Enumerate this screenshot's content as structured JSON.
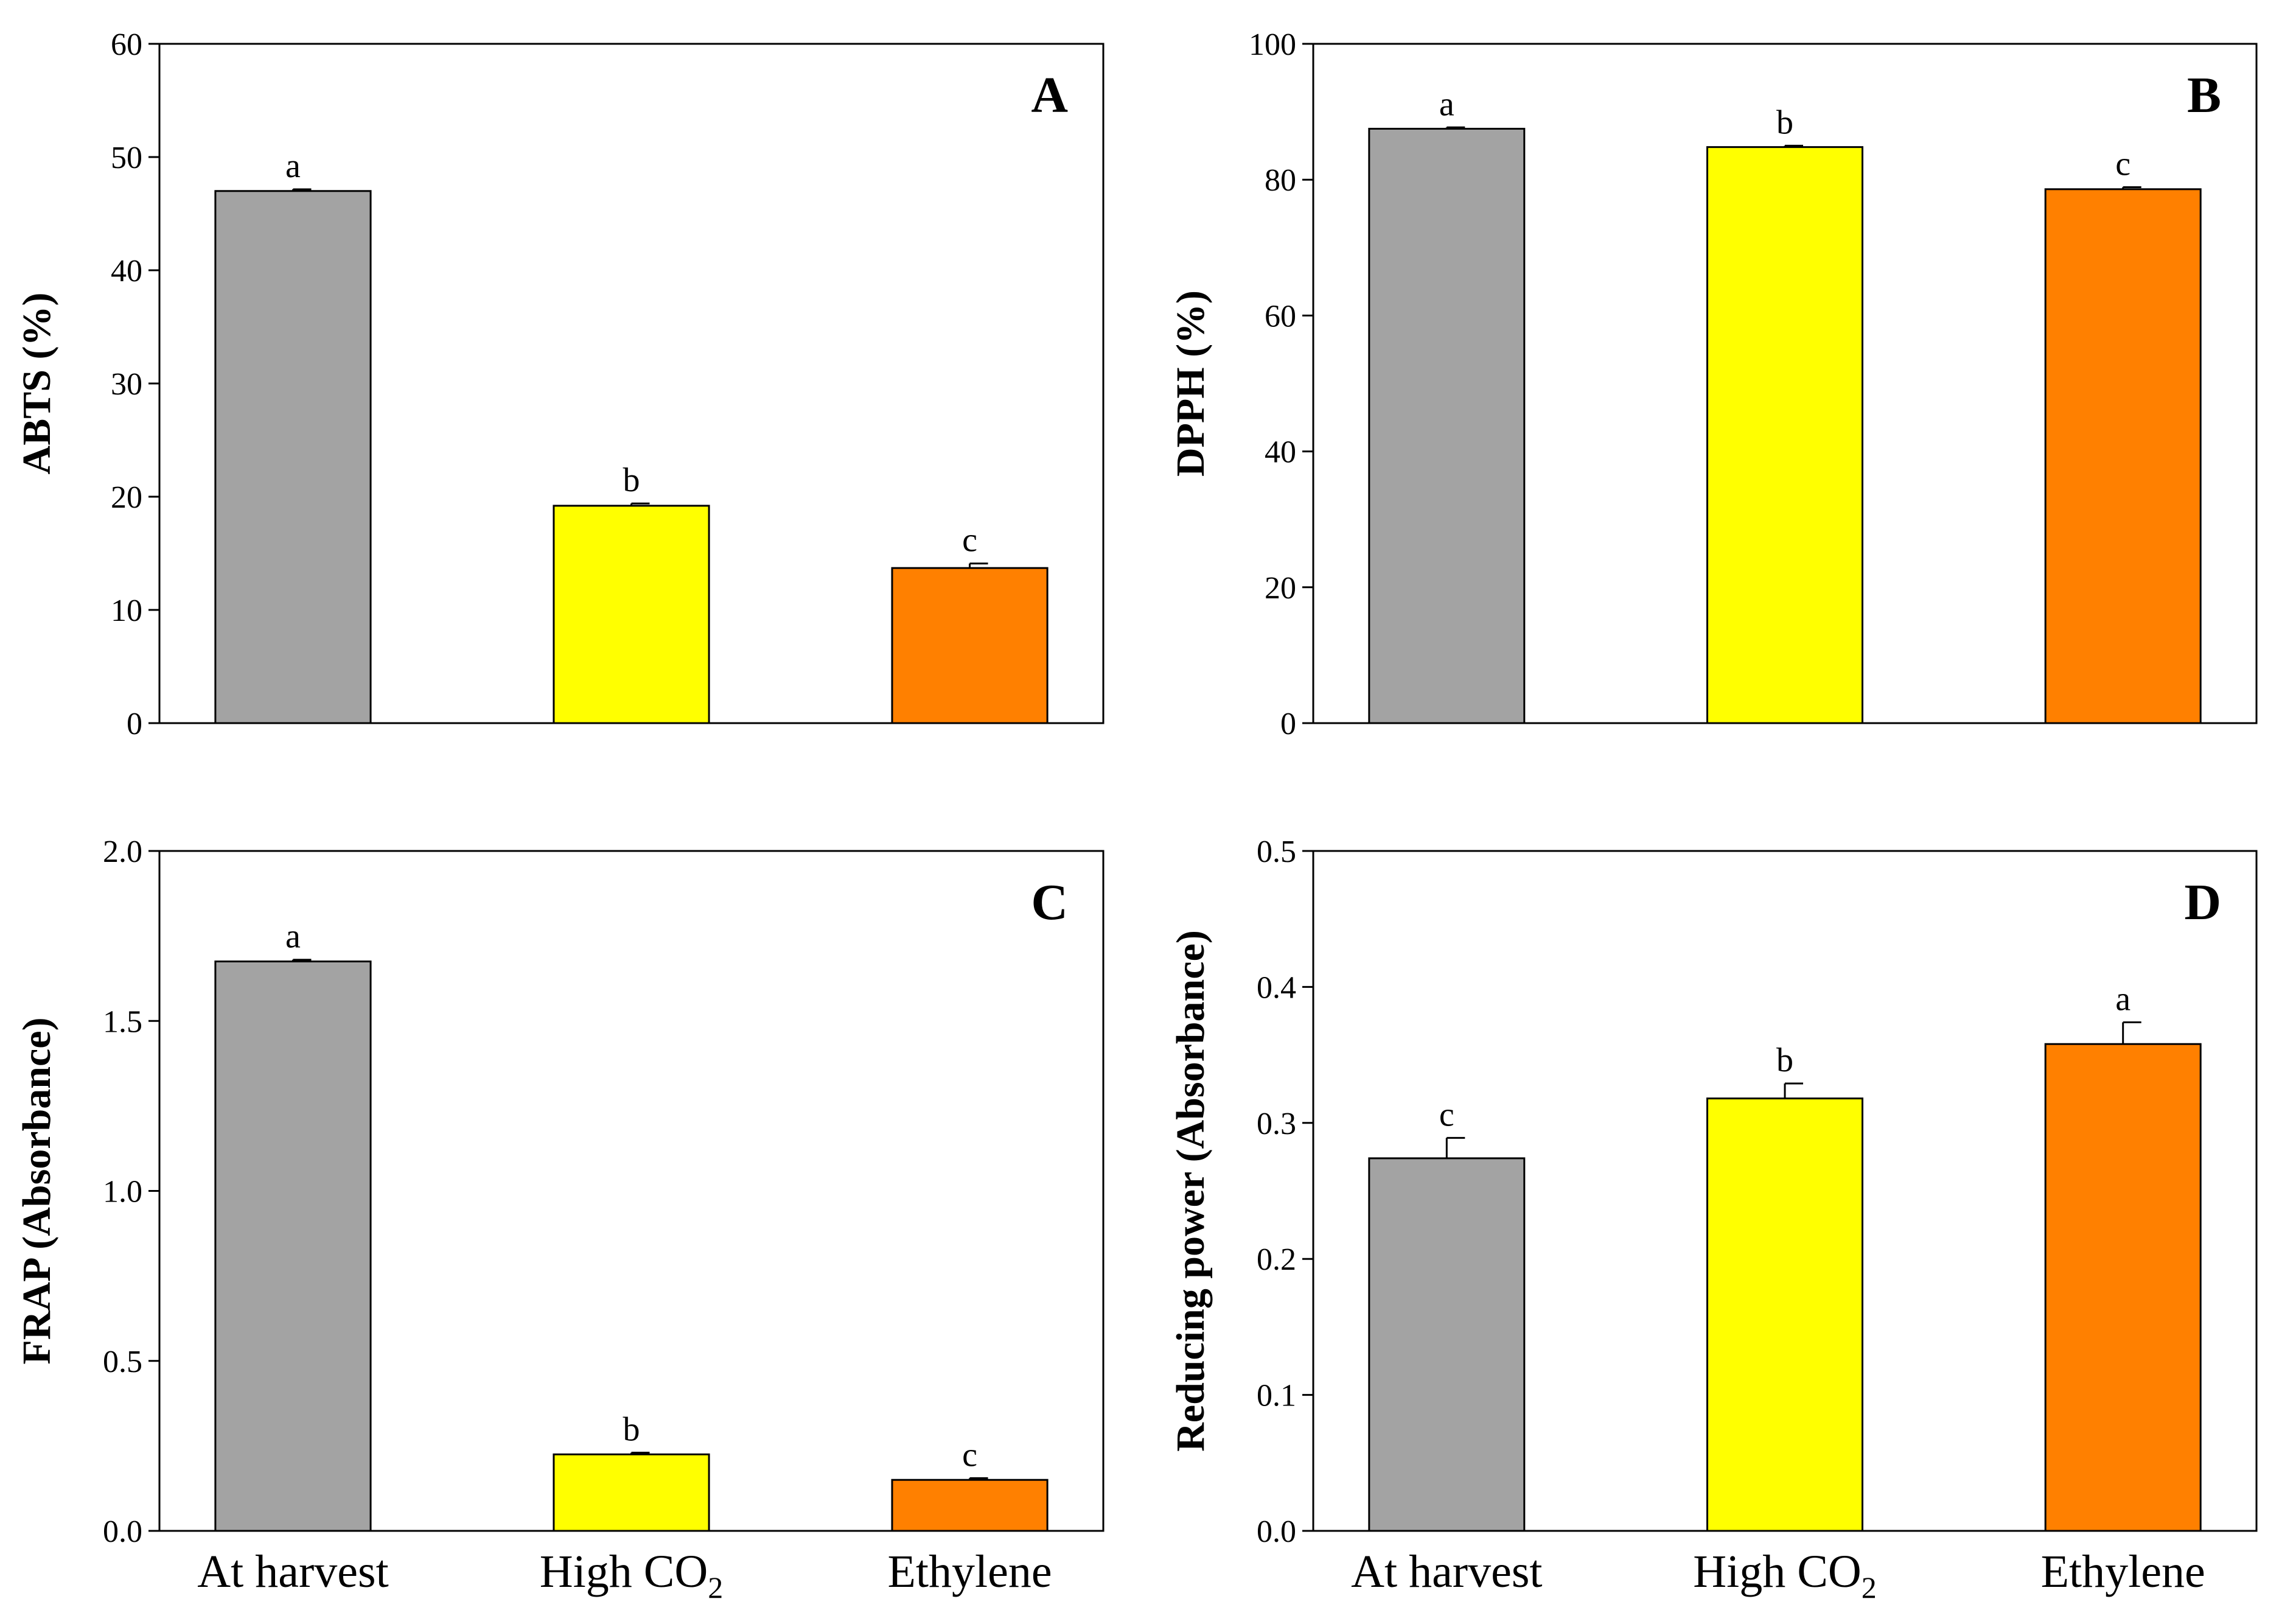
{
  "chart_data": [
    {
      "type": "bar",
      "panel": "A",
      "ylabel": "ABTS (%)",
      "ylim": [
        0,
        60
      ],
      "yticks": [
        0,
        10,
        20,
        30,
        40,
        50,
        60
      ],
      "categories": [
        "At harvest",
        "High CO2",
        "Ethylene"
      ],
      "values": [
        47.0,
        19.2,
        13.7
      ],
      "errors": [
        0.15,
        0.2,
        0.4
      ],
      "significance": [
        "a",
        "b",
        "c"
      ],
      "colors": [
        "#a3a3a3",
        "#ffff00",
        "#ff8000"
      ],
      "show_category_labels": false
    },
    {
      "type": "bar",
      "panel": "B",
      "ylabel": "DPPH (%)",
      "ylim": [
        0,
        100
      ],
      "yticks": [
        0,
        20,
        40,
        60,
        80,
        100
      ],
      "categories": [
        "At harvest",
        "High CO2",
        "Ethylene"
      ],
      "values": [
        87.5,
        84.8,
        78.6
      ],
      "errors": [
        0.2,
        0.2,
        0.3
      ],
      "significance": [
        "a",
        "b",
        "c"
      ],
      "colors": [
        "#a3a3a3",
        "#ffff00",
        "#ff8000"
      ],
      "show_category_labels": false
    },
    {
      "type": "bar",
      "panel": "C",
      "ylabel": "FRAP (Absorbance)",
      "ylim": [
        0,
        2.0
      ],
      "yticks": [
        "0.0",
        "0.5",
        "1.0",
        "1.5",
        "2.0"
      ],
      "categories": [
        "At harvest",
        "High CO2",
        "Ethylene"
      ],
      "values": [
        1.675,
        0.225,
        0.15
      ],
      "errors": [
        0.005,
        0.005,
        0.005
      ],
      "significance": [
        "a",
        "b",
        "c"
      ],
      "colors": [
        "#a3a3a3",
        "#ffff00",
        "#ff8000"
      ],
      "show_category_labels": true
    },
    {
      "type": "bar",
      "panel": "D",
      "ylabel": "Reducing power (Absorbance)",
      "ylim": [
        0,
        0.5
      ],
      "yticks": [
        "0.0",
        "0.1",
        "0.2",
        "0.3",
        "0.4",
        "0.5"
      ],
      "categories": [
        "At harvest",
        "High CO2",
        "Ethylene"
      ],
      "values": [
        0.274,
        0.318,
        0.358
      ],
      "errors": [
        0.015,
        0.011,
        0.016
      ],
      "significance": [
        "c",
        "b",
        "a"
      ],
      "colors": [
        "#a3a3a3",
        "#ffff00",
        "#ff8000"
      ],
      "show_category_labels": true
    }
  ]
}
